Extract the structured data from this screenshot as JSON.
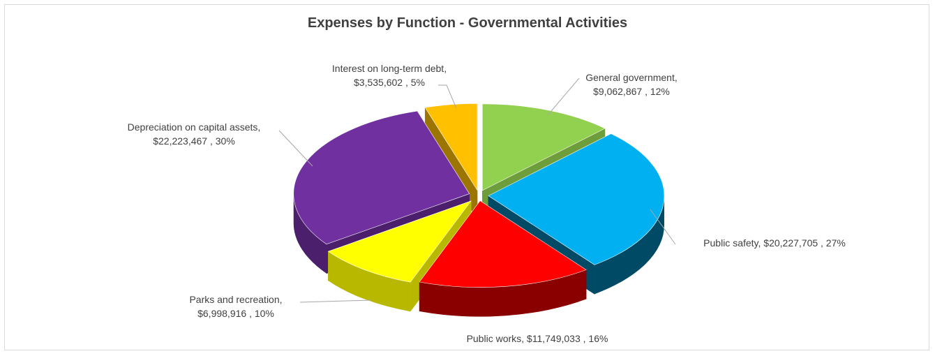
{
  "chart_data": {
    "type": "pie",
    "title": "Expenses by Function - Governmental Activities",
    "slices": [
      {
        "label": "General government,",
        "value_text": "$9,062,867 , 12%",
        "value": 9062867,
        "percent": 12,
        "color": "#92d050",
        "side": "#6e9e3c"
      },
      {
        "label": "Public safety,",
        "value_text": "$20,227,705 , 27%",
        "value": 20227705,
        "percent": 27,
        "color": "#00b0f0",
        "side": "#004a66"
      },
      {
        "label": "Public works,",
        "value_text": "$11,749,033 , 16%",
        "value": 11749033,
        "percent": 16,
        "color": "#ff0000",
        "side": "#8a0000"
      },
      {
        "label": "Parks and recreation,",
        "value_text": "$6,998,916 , 10%",
        "value": 6998916,
        "percent": 10,
        "color": "#ffff00",
        "side": "#b8b800"
      },
      {
        "label": "Depreciation on capital assets,",
        "value_text": "$22,223,467 , 30%",
        "value": 22223467,
        "percent": 30,
        "color": "#7030a0",
        "side": "#4b1f6b"
      },
      {
        "label": "Interest on long-term debt,",
        "value_text": "$3,535,602 , 5%",
        "value": 3535602,
        "percent": 5,
        "color": "#ffc000",
        "side": "#9c7400"
      }
    ]
  }
}
